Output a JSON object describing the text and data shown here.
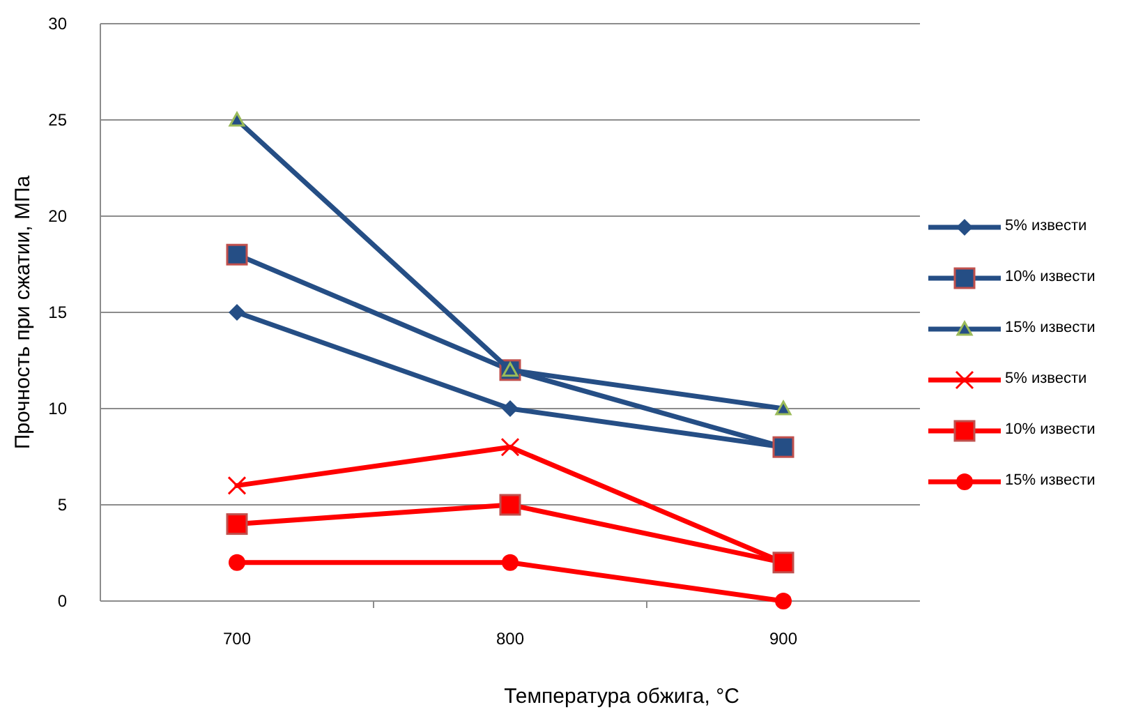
{
  "chart_data": {
    "type": "line",
    "xlabel": "Температура обжига, °C",
    "ylabel": "Прочность при сжатии, МПа",
    "categories": [
      "700",
      "800",
      "900"
    ],
    "ylim": [
      0,
      30
    ],
    "yticks": [
      0,
      5,
      10,
      15,
      20,
      25,
      30
    ],
    "grid": "y",
    "legend": "right",
    "series": [
      {
        "name": "5% извести",
        "color": "#254e85",
        "marker": "diamond",
        "values": [
          15,
          10,
          8
        ]
      },
      {
        "name": "10% извести",
        "color": "#254e85",
        "marker": "square",
        "values": [
          18,
          12,
          8
        ]
      },
      {
        "name": "15% извести",
        "color": "#254e85",
        "marker": "triangle",
        "values": [
          25,
          12,
          10
        ]
      },
      {
        "name": "5% извести",
        "color": "#ff0000",
        "marker": "cross",
        "values": [
          6,
          8,
          2
        ]
      },
      {
        "name": "10% извести",
        "color": "#ff0000",
        "marker": "square",
        "values": [
          4,
          5,
          2
        ]
      },
      {
        "name": "15% извести",
        "color": "#ff0000",
        "marker": "circle",
        "values": [
          2,
          2,
          0
        ]
      }
    ]
  }
}
